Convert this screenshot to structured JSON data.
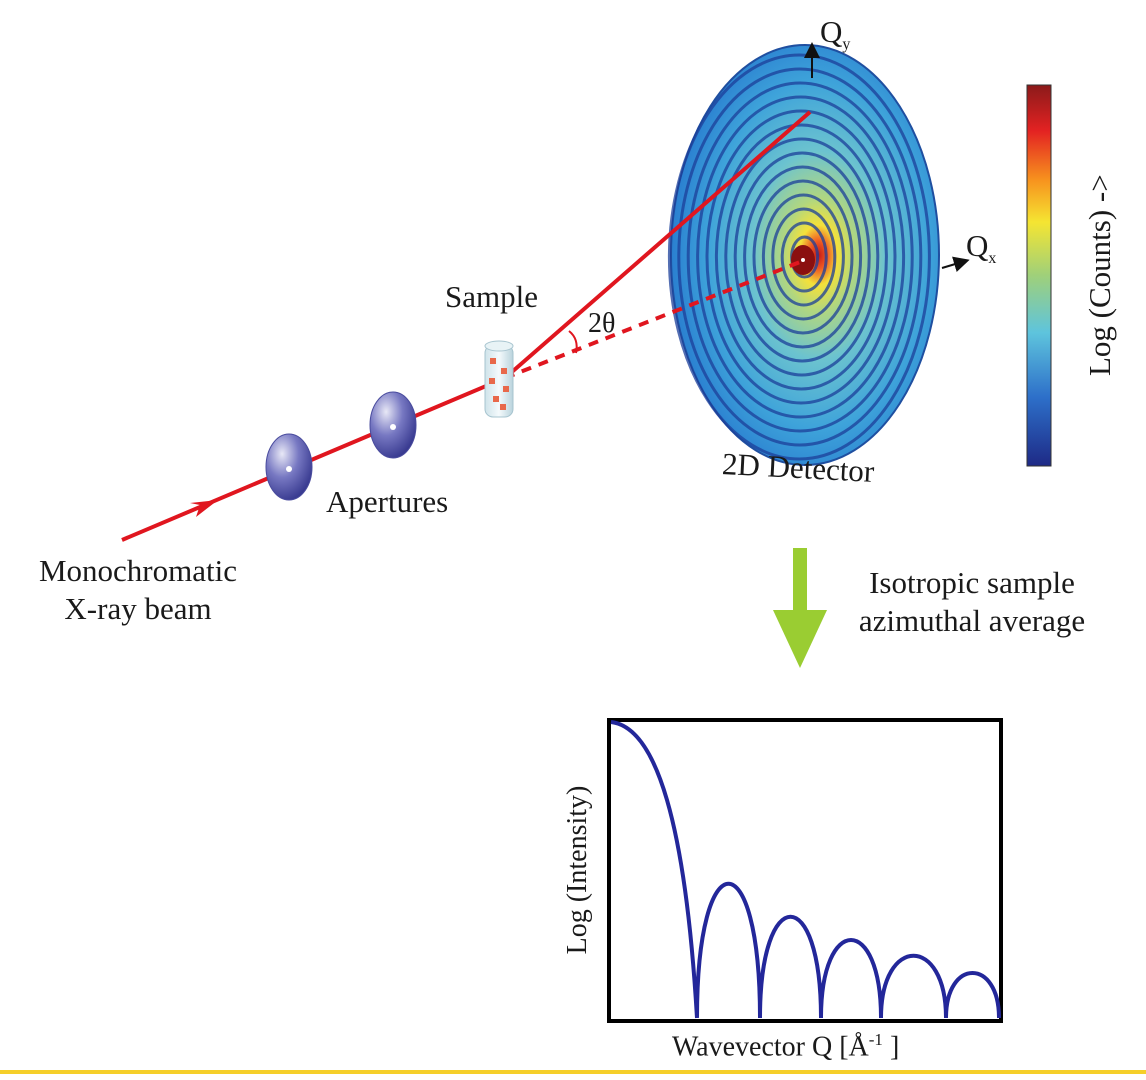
{
  "labels": {
    "monochromatic_line1": "Monochromatic",
    "monochromatic_line2": "X-ray beam",
    "apertures": "Apertures",
    "sample": "Sample",
    "two_theta": "2θ",
    "detector": "2D Detector",
    "qy_main": "Q",
    "qy_sub": "y",
    "qx_main": "Q",
    "qx_sub": "x",
    "colorbar_label": "Log (Counts) ->",
    "isotropic_line1": "Isotropic sample",
    "isotropic_line2": "azimuthal average",
    "plot_ylabel": "Log (Intensity)",
    "plot_xlabel_prefix": "Wavevector Q [Å",
    "plot_xlabel_sup": "-1",
    "plot_xlabel_suffix": " ]"
  },
  "colors": {
    "beam": "#e0161f",
    "aperture": "#3b3c92",
    "curve": "#23279a",
    "arrow": "#9acd32",
    "bottom_rule": "#f5cf2a"
  }
}
